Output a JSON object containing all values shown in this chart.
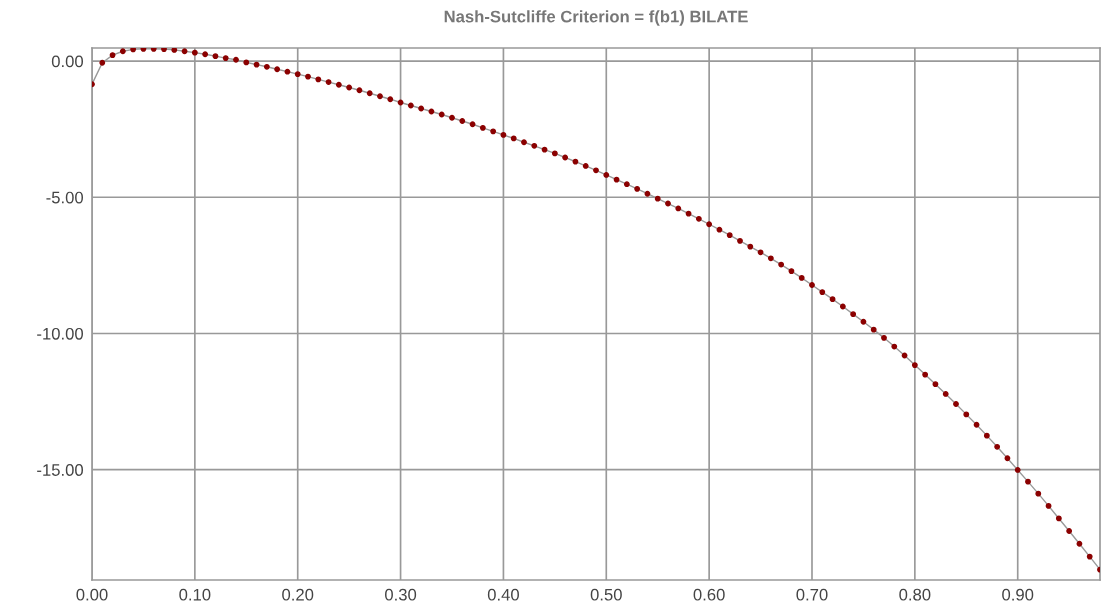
{
  "chart_data": {
    "type": "line",
    "title": "Nash-Sutcliffe Criterion = f(b1) BILATE",
    "x": [
      0,
      0.01,
      0.02,
      0.03,
      0.04,
      0.05,
      0.06,
      0.07,
      0.08,
      0.09,
      0.1,
      0.11,
      0.12,
      0.13,
      0.14,
      0.15,
      0.16,
      0.17,
      0.18,
      0.19,
      0.2,
      0.21,
      0.22,
      0.23,
      0.24,
      0.25,
      0.26,
      0.27,
      0.28,
      0.29,
      0.3,
      0.31,
      0.32,
      0.33,
      0.34,
      0.35,
      0.36,
      0.37,
      0.38,
      0.39,
      0.4,
      0.41,
      0.42,
      0.43,
      0.44,
      0.45,
      0.46,
      0.47,
      0.48,
      0.49,
      0.5,
      0.51,
      0.52,
      0.53,
      0.54,
      0.55,
      0.56,
      0.57,
      0.58,
      0.59,
      0.6,
      0.61,
      0.62,
      0.63,
      0.64,
      0.65,
      0.66,
      0.67,
      0.68,
      0.69,
      0.7,
      0.71,
      0.72,
      0.73,
      0.74,
      0.75,
      0.76,
      0.77,
      0.78,
      0.79,
      0.8,
      0.81,
      0.82,
      0.83,
      0.84,
      0.85,
      0.86,
      0.87,
      0.88,
      0.89,
      0.9,
      0.91,
      0.92,
      0.93,
      0.94,
      0.95,
      0.96,
      0.97,
      0.98
    ],
    "series": [
      {
        "color": "#8b0000",
        "values": [
          -0.85,
          -0.06,
          0.22,
          0.36,
          0.43,
          0.45,
          0.45,
          0.44,
          0.41,
          0.36,
          0.31,
          0.25,
          0.18,
          0.11,
          0.05,
          -0.05,
          -0.13,
          -0.21,
          -0.3,
          -0.39,
          -0.48,
          -0.57,
          -0.67,
          -0.77,
          -0.87,
          -0.97,
          -1.07,
          -1.18,
          -1.29,
          -1.4,
          -1.52,
          -1.63,
          -1.74,
          -1.85,
          -1.96,
          -2.08,
          -2.2,
          -2.32,
          -2.45,
          -2.58,
          -2.71,
          -2.84,
          -2.98,
          -3.11,
          -3.25,
          -3.39,
          -3.54,
          -3.69,
          -3.85,
          -4.01,
          -4.18,
          -4.35,
          -4.52,
          -4.69,
          -4.87,
          -5.05,
          -5.23,
          -5.41,
          -5.6,
          -5.79,
          -5.99,
          -6.19,
          -6.39,
          -6.6,
          -6.81,
          -7.02,
          -7.24,
          -7.47,
          -7.71,
          -7.96,
          -8.22,
          -8.48,
          -8.74,
          -9.01,
          -9.29,
          -9.57,
          -9.86,
          -10.16,
          -10.48,
          -10.81,
          -11.16,
          -11.51,
          -11.86,
          -12.22,
          -12.59,
          -12.97,
          -13.35,
          -13.75,
          -14.16,
          -14.58,
          -15.01,
          -15.44,
          -15.88,
          -16.33,
          -16.79,
          -17.25,
          -17.72,
          -18.19,
          -18.67
        ]
      }
    ],
    "xlim": [
      0,
      0.98
    ],
    "ylim": [
      -19.05,
      0.48
    ],
    "xticks": [
      {
        "value": 0,
        "label": "0.00"
      },
      {
        "value": 0.1,
        "label": "0.10"
      },
      {
        "value": 0.2,
        "label": "0.20"
      },
      {
        "value": 0.3,
        "label": "0.30"
      },
      {
        "value": 0.4,
        "label": "0.40"
      },
      {
        "value": 0.5,
        "label": "0.50"
      },
      {
        "value": 0.6,
        "label": "0.60"
      },
      {
        "value": 0.7,
        "label": "0.70"
      },
      {
        "value": 0.8,
        "label": "0.80"
      },
      {
        "value": 0.9,
        "label": "0.90"
      }
    ],
    "yticks": [
      {
        "value": 0,
        "label": "0.00"
      },
      {
        "value": -5,
        "label": "-5.00"
      },
      {
        "value": -10,
        "label": "-10.00"
      },
      {
        "value": -15,
        "label": "-15.00"
      }
    ],
    "grid": true,
    "marker": "circle",
    "line_style": "solid"
  }
}
